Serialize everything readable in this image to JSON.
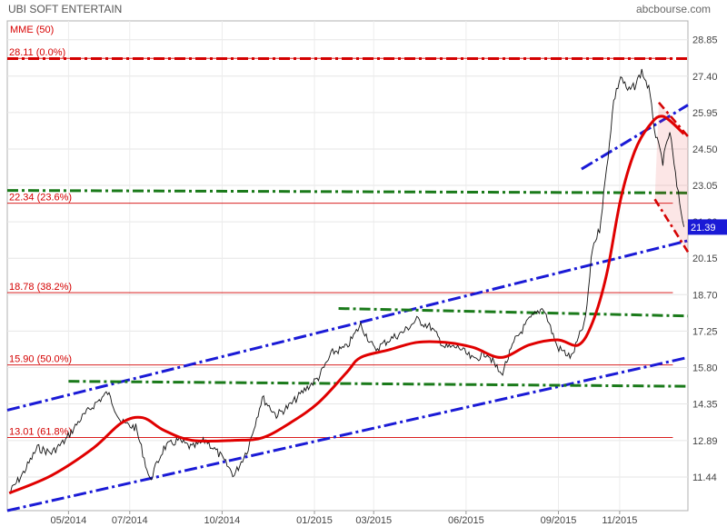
{
  "header": {
    "title": "UBI SOFT ENTERTAIN",
    "source": "abcbourse.com",
    "indicator_label": "MME (50)"
  },
  "colors": {
    "price": "#111111",
    "ema": "#e00000",
    "trend_channel": "#1a1ad6",
    "support": "#1a7a1a",
    "fibonacci": "#d40000",
    "resistance_top": "#d40000",
    "last_price_box": "#1a1ad6"
  },
  "chart_data": {
    "type": "line",
    "title": "UBI SOFT ENTERTAIN",
    "xlabel": "",
    "ylabel": "",
    "ylim": [
      10.1,
      29.6
    ],
    "grid": true,
    "y_ticks": [
      "28.85",
      "27.40",
      "25.95",
      "24.50",
      "23.05",
      "21.60",
      "20.15",
      "18.70",
      "17.25",
      "15.80",
      "14.35",
      "12.89",
      "11.44"
    ],
    "x_ticks": [
      {
        "label": "05/2014",
        "x": "2014-05-01"
      },
      {
        "label": "07/2014",
        "x": "2014-07-01"
      },
      {
        "label": "10/2014",
        "x": "2014-10-01"
      },
      {
        "label": "01/2015",
        "x": "2015-01-01"
      },
      {
        "label": "03/2015",
        "x": "2015-03-01"
      },
      {
        "label": "06/2015",
        "x": "2015-06-01"
      },
      {
        "label": "09/2015",
        "x": "2015-09-01"
      },
      {
        "label": "11/2015",
        "x": "2015-11-01"
      }
    ],
    "x_range": [
      "2014-03-01",
      "2016-01-08"
    ],
    "last_price": "21.39",
    "price_series": [
      [
        "2014-03-03",
        10.8
      ],
      [
        "2014-03-17",
        11.6
      ],
      [
        "2014-03-31",
        12.6
      ],
      [
        "2014-04-14",
        12.4
      ],
      [
        "2014-04-28",
        12.9
      ],
      [
        "2014-05-12",
        13.7
      ],
      [
        "2014-05-26",
        14.3
      ],
      [
        "2014-06-09",
        14.8
      ],
      [
        "2014-06-23",
        13.6
      ],
      [
        "2014-07-07",
        13.4
      ],
      [
        "2014-07-14",
        12.4
      ],
      [
        "2014-07-21",
        11.3
      ],
      [
        "2014-08-04",
        12.6
      ],
      [
        "2014-08-18",
        12.9
      ],
      [
        "2014-09-01",
        12.6
      ],
      [
        "2014-09-15",
        12.9
      ],
      [
        "2014-09-29",
        12.3
      ],
      [
        "2014-10-13",
        11.5
      ],
      [
        "2014-10-27",
        12.6
      ],
      [
        "2014-11-10",
        14.6
      ],
      [
        "2014-11-24",
        13.9
      ],
      [
        "2014-12-08",
        14.3
      ],
      [
        "2014-12-22",
        14.9
      ],
      [
        "2015-01-05",
        15.4
      ],
      [
        "2015-01-19",
        16.4
      ],
      [
        "2015-02-02",
        16.6
      ],
      [
        "2015-02-16",
        17.5
      ],
      [
        "2015-03-02",
        16.5
      ],
      [
        "2015-03-16",
        16.9
      ],
      [
        "2015-03-30",
        17.2
      ],
      [
        "2015-04-13",
        17.7
      ],
      [
        "2015-04-27",
        17.4
      ],
      [
        "2015-05-11",
        16.6
      ],
      [
        "2015-05-25",
        16.6
      ],
      [
        "2015-06-08",
        16.1
      ],
      [
        "2015-06-22",
        16.4
      ],
      [
        "2015-07-06",
        15.5
      ],
      [
        "2015-07-20",
        16.9
      ],
      [
        "2015-08-03",
        17.7
      ],
      [
        "2015-08-17",
        18.2
      ],
      [
        "2015-08-31",
        16.6
      ],
      [
        "2015-09-14",
        16.2
      ],
      [
        "2015-09-28",
        17.7
      ],
      [
        "2015-10-05",
        20.6
      ],
      [
        "2015-10-12",
        21.3
      ],
      [
        "2015-10-19",
        23.7
      ],
      [
        "2015-10-26",
        26.4
      ],
      [
        "2015-11-02",
        27.4
      ],
      [
        "2015-11-09",
        26.8
      ],
      [
        "2015-11-16",
        27.0
      ],
      [
        "2015-11-23",
        27.6
      ],
      [
        "2015-11-30",
        26.9
      ],
      [
        "2015-12-07",
        25.0
      ],
      [
        "2015-12-14",
        24.0
      ],
      [
        "2015-12-21",
        25.2
      ],
      [
        "2015-12-28",
        23.0
      ],
      [
        "2016-01-04",
        21.4
      ]
    ],
    "ema_series": [
      [
        "2014-03-03",
        10.8
      ],
      [
        "2014-04-14",
        11.5
      ],
      [
        "2014-05-26",
        12.6
      ],
      [
        "2014-06-23",
        13.6
      ],
      [
        "2014-07-14",
        13.8
      ],
      [
        "2014-08-04",
        13.3
      ],
      [
        "2014-09-01",
        12.9
      ],
      [
        "2014-10-13",
        12.9
      ],
      [
        "2014-11-10",
        13.0
      ],
      [
        "2014-12-08",
        13.6
      ],
      [
        "2015-01-05",
        14.4
      ],
      [
        "2015-02-02",
        15.6
      ],
      [
        "2015-02-16",
        16.2
      ],
      [
        "2015-03-16",
        16.5
      ],
      [
        "2015-04-13",
        16.8
      ],
      [
        "2015-05-11",
        16.8
      ],
      [
        "2015-06-08",
        16.6
      ],
      [
        "2015-07-06",
        16.2
      ],
      [
        "2015-08-03",
        16.7
      ],
      [
        "2015-08-31",
        16.9
      ],
      [
        "2015-09-21",
        16.7
      ],
      [
        "2015-10-05",
        17.6
      ],
      [
        "2015-10-19",
        19.5
      ],
      [
        "2015-11-02",
        22.5
      ],
      [
        "2015-11-16",
        24.4
      ],
      [
        "2015-11-30",
        25.4
      ],
      [
        "2015-12-14",
        25.8
      ],
      [
        "2016-01-04",
        25.1
      ]
    ],
    "trendlines": [
      {
        "kind": "channel-upper",
        "from": [
          "2014-03-01",
          14.1
        ],
        "to": [
          "2016-01-08",
          20.85
        ]
      },
      {
        "kind": "channel-lower",
        "from": [
          "2014-03-01",
          10.1
        ],
        "to": [
          "2016-01-08",
          16.2
        ]
      },
      {
        "kind": "channel-upper-parallel",
        "from": [
          "2015-09-24",
          23.7
        ],
        "to": [
          "2016-01-08",
          26.25
        ]
      },
      {
        "kind": "support",
        "from": [
          "2014-05-01",
          15.25
        ],
        "to": [
          "2016-01-08",
          15.05
        ]
      },
      {
        "kind": "support",
        "from": [
          "2015-01-25",
          18.15
        ],
        "to": [
          "2016-01-08",
          17.85
        ]
      },
      {
        "kind": "support",
        "from": [
          "2014-03-01",
          22.85
        ],
        "to": [
          "2016-01-08",
          22.75
        ]
      },
      {
        "kind": "resistance",
        "from": [
          "2014-03-01",
          28.1
        ],
        "to": [
          "2016-01-08",
          28.1
        ]
      },
      {
        "kind": "down-channel",
        "from": [
          "2015-12-10",
          26.35
        ],
        "to": [
          "2016-01-08",
          25.0
        ]
      },
      {
        "kind": "down-channel",
        "from": [
          "2015-12-06",
          22.5
        ],
        "to": [
          "2016-01-08",
          20.4
        ]
      }
    ],
    "fibonacci": [
      {
        "label": "28.11  (0.0%)",
        "value": 28.11
      },
      {
        "label": "22.34  (23.6%)",
        "value": 22.34
      },
      {
        "label": "18.78  (38.2%)",
        "value": 18.78
      },
      {
        "label": "15.90  (50.0%)",
        "value": 15.9
      },
      {
        "label": "13.01  (61.8%)",
        "value": 13.01
      }
    ]
  }
}
